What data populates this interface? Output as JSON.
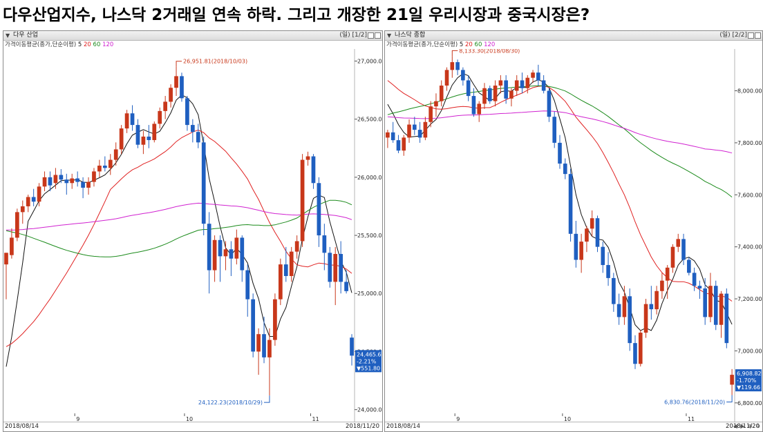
{
  "headline": "다우산업지수, 나스닥 2거래일 연속 하락. 그리고 개장한 21일 우리시장과 중국시장은?",
  "chart_data": [
    {
      "type": "candlestick",
      "panel_title": "다우 산업",
      "panel_period": "(일) [1/2]",
      "indicator_label": "가격이동평균(종가,단순이평)",
      "ma_periods": [
        {
          "label": "5",
          "color": "#111111"
        },
        {
          "label": "20",
          "color": "#e02020"
        },
        {
          "label": "60",
          "color": "#1a8a1a"
        },
        {
          "label": "120",
          "color": "#d020d0"
        }
      ],
      "colors": {
        "up": "#c8371a",
        "down": "#1f5fc0",
        "ma5": "#111111",
        "ma20": "#e02020",
        "ma60": "#1a8a1a",
        "ma120": "#d020d0"
      },
      "x_date_start": "2018/08/14",
      "x_date_end": "2018/11/20",
      "x_month_ticks": [
        {
          "label": "9",
          "index": 13
        },
        {
          "label": "10",
          "index": 33
        },
        {
          "label": "11",
          "index": 56
        }
      ],
      "y_ticks": [
        24000,
        24500,
        25000,
        25500,
        26000,
        26500,
        27000
      ],
      "y_tick_labels": [
        "24,000.00",
        "24,500.00",
        "25,000.00",
        "25,500.00",
        "26,000.00",
        "26,500.00",
        "27,000.00"
      ],
      "ylim": [
        23980,
        27080
      ],
      "high_annotation": "26,951.81(2018/10/03)",
      "low_annotation": "24,122.23(2018/10/29)",
      "last_value_box": [
        "24,465.64",
        "-2.21%",
        "▼551.80"
      ],
      "ohlc": [
        [
          25250,
          25350,
          24950,
          25350
        ],
        [
          25330,
          25560,
          25300,
          25480
        ],
        [
          25480,
          25730,
          25450,
          25700
        ],
        [
          25700,
          25800,
          25600,
          25750
        ],
        [
          25750,
          25850,
          25700,
          25830
        ],
        [
          25830,
          25900,
          25750,
          25790
        ],
        [
          25790,
          25950,
          25750,
          25920
        ],
        [
          25920,
          26050,
          25880,
          26000
        ],
        [
          26000,
          26050,
          25880,
          25930
        ],
        [
          25950,
          26080,
          25900,
          26020
        ],
        [
          26020,
          26070,
          25950,
          25980
        ],
        [
          25980,
          26030,
          25850,
          25950
        ],
        [
          25950,
          26030,
          25900,
          25990
        ],
        [
          25990,
          26050,
          25920,
          25960
        ],
        [
          25960,
          26000,
          25820,
          25910
        ],
        [
          25910,
          26000,
          25850,
          25960
        ],
        [
          25960,
          26080,
          25920,
          26050
        ],
        [
          26050,
          26150,
          26000,
          26100
        ],
        [
          26100,
          26180,
          26050,
          26080
        ],
        [
          26080,
          26200,
          26020,
          26150
        ],
        [
          26150,
          26300,
          26100,
          26240
        ],
        [
          26240,
          26450,
          26200,
          26420
        ],
        [
          26420,
          26580,
          26380,
          26550
        ],
        [
          26550,
          26620,
          26400,
          26450
        ],
        [
          26450,
          26500,
          26250,
          26280
        ],
        [
          26280,
          26400,
          26200,
          26350
        ],
        [
          26350,
          26450,
          26250,
          26320
        ],
        [
          26320,
          26480,
          26300,
          26460
        ],
        [
          26460,
          26600,
          26420,
          26570
        ],
        [
          26570,
          26700,
          26500,
          26650
        ],
        [
          26650,
          26800,
          26600,
          26770
        ],
        [
          26770,
          26951,
          26700,
          26870
        ],
        [
          26870,
          26900,
          26650,
          26680
        ],
        [
          26680,
          26700,
          26400,
          26450
        ],
        [
          26450,
          26500,
          26300,
          26390
        ],
        [
          26390,
          26460,
          26250,
          26300
        ],
        [
          26300,
          26350,
          25500,
          25600
        ],
        [
          25600,
          25700,
          25000,
          25200
        ],
        [
          25200,
          25500,
          25100,
          25460
        ],
        [
          25460,
          25500,
          25100,
          25320
        ],
        [
          25320,
          25450,
          25200,
          25380
        ],
        [
          25380,
          25450,
          25150,
          25300
        ],
        [
          25300,
          25550,
          25250,
          25480
        ],
        [
          25480,
          25500,
          25100,
          25200
        ],
        [
          25200,
          25250,
          24800,
          24950
        ],
        [
          24950,
          25000,
          24450,
          24500
        ],
        [
          24500,
          24700,
          24300,
          24650
        ],
        [
          24650,
          24800,
          24400,
          24450
        ],
        [
          24450,
          24700,
          24122,
          24600
        ],
        [
          24600,
          25000,
          24550,
          24950
        ],
        [
          24950,
          25300,
          24900,
          25250
        ],
        [
          25250,
          25400,
          25100,
          25150
        ],
        [
          25150,
          25400,
          25100,
          25360
        ],
        [
          25360,
          25500,
          25300,
          25450
        ],
        [
          25450,
          26200,
          25400,
          26150
        ],
        [
          26150,
          26220,
          26100,
          26180
        ],
        [
          26180,
          26200,
          25900,
          25950
        ],
        [
          25950,
          26000,
          25400,
          25500
        ],
        [
          25500,
          25600,
          25200,
          25350
        ],
        [
          25350,
          25400,
          25050,
          25100
        ],
        [
          25100,
          25400,
          24900,
          25340
        ],
        [
          25340,
          25450,
          25000,
          25100
        ],
        [
          25100,
          25200,
          25000,
          25020
        ],
        [
          24620,
          24650,
          24380,
          24465
        ]
      ]
    },
    {
      "type": "candlestick",
      "panel_title": "나스닥 종합",
      "panel_period": "(일) [2/2]",
      "indicator_label": "가격이동평균(종가,단순이평)",
      "ma_periods": [
        {
          "label": "5",
          "color": "#111111"
        },
        {
          "label": "20",
          "color": "#e02020"
        },
        {
          "label": "60",
          "color": "#1a8a1a"
        },
        {
          "label": "120",
          "color": "#d020d0"
        }
      ],
      "colors": {
        "up": "#c8371a",
        "down": "#1f5fc0",
        "ma5": "#111111",
        "ma20": "#e02020",
        "ma60": "#1a8a1a",
        "ma120": "#d020d0"
      },
      "x_date_start": "2018/08/14",
      "x_date_end": "2018/11/20",
      "x_month_ticks": [
        {
          "label": "9",
          "index": 13
        },
        {
          "label": "10",
          "index": 33
        },
        {
          "label": "11",
          "index": 56
        }
      ],
      "y_ticks": [
        6800,
        7000,
        7200,
        7400,
        7600,
        7800,
        8000
      ],
      "y_tick_labels": [
        "6,800.00",
        "7,000.00",
        "7,200.00",
        "7,400.00",
        "7,600.00",
        "7,800.00",
        "8,000.00"
      ],
      "ylim": [
        6765,
        8150
      ],
      "high_annotation": "8,133.30(2018/08/30)",
      "low_annotation": "6,830.76(2018/11/20)",
      "last_value_box": [
        "6,908.82",
        "-1.70%",
        "▼119.66"
      ],
      "ohlc": [
        [
          7820,
          7850,
          7780,
          7840
        ],
        [
          7840,
          7880,
          7800,
          7810
        ],
        [
          7810,
          7830,
          7760,
          7770
        ],
        [
          7770,
          7830,
          7750,
          7820
        ],
        [
          7820,
          7890,
          7800,
          7870
        ],
        [
          7870,
          7900,
          7830,
          7850
        ],
        [
          7850,
          7880,
          7800,
          7820
        ],
        [
          7820,
          7900,
          7810,
          7880
        ],
        [
          7880,
          7960,
          7860,
          7940
        ],
        [
          7940,
          7990,
          7900,
          7960
        ],
        [
          7960,
          8040,
          7940,
          8020
        ],
        [
          8020,
          8090,
          8000,
          8080
        ],
        [
          8080,
          8133,
          8050,
          8110
        ],
        [
          8110,
          8120,
          8060,
          8080
        ],
        [
          8080,
          8090,
          8020,
          8040
        ],
        [
          8040,
          8060,
          7960,
          7980
        ],
        [
          7980,
          8010,
          7900,
          7910
        ],
        [
          7910,
          7960,
          7880,
          7950
        ],
        [
          7950,
          8030,
          7930,
          8010
        ],
        [
          8010,
          8020,
          7950,
          7960
        ],
        [
          7960,
          8040,
          7940,
          8020
        ],
        [
          8020,
          8060,
          7990,
          8040
        ],
        [
          8040,
          8060,
          7950,
          7970
        ],
        [
          7970,
          8010,
          7940,
          8000
        ],
        [
          8000,
          8060,
          7980,
          8040
        ],
        [
          8040,
          8070,
          7990,
          8010
        ],
        [
          8010,
          8060,
          7990,
          8050
        ],
        [
          8050,
          8080,
          8030,
          8070
        ],
        [
          8070,
          8100,
          8020,
          8040
        ],
        [
          8040,
          8060,
          7990,
          8000
        ],
        [
          8000,
          8010,
          7880,
          7900
        ],
        [
          7900,
          7920,
          7780,
          7800
        ],
        [
          7800,
          7830,
          7700,
          7720
        ],
        [
          7720,
          7740,
          7660,
          7680
        ],
        [
          7680,
          7700,
          7420,
          7450
        ],
        [
          7450,
          7500,
          7320,
          7350
        ],
        [
          7350,
          7450,
          7300,
          7420
        ],
        [
          7420,
          7480,
          7380,
          7470
        ],
        [
          7470,
          7540,
          7440,
          7510
        ],
        [
          7510,
          7520,
          7380,
          7400
        ],
        [
          7400,
          7420,
          7300,
          7330
        ],
        [
          7330,
          7380,
          7250,
          7280
        ],
        [
          7280,
          7300,
          7150,
          7180
        ],
        [
          7180,
          7220,
          7100,
          7130
        ],
        [
          7130,
          7250,
          7100,
          7210
        ],
        [
          7210,
          7240,
          7000,
          7030
        ],
        [
          7030,
          7060,
          6930,
          6950
        ],
        [
          6950,
          7080,
          6940,
          7070
        ],
        [
          7070,
          7200,
          7050,
          7180
        ],
        [
          7180,
          7250,
          7120,
          7160
        ],
        [
          7160,
          7250,
          7140,
          7230
        ],
        [
          7230,
          7300,
          7200,
          7270
        ],
        [
          7270,
          7330,
          7200,
          7320
        ],
        [
          7320,
          7410,
          7300,
          7400
        ],
        [
          7400,
          7450,
          7380,
          7430
        ],
        [
          7430,
          7450,
          7330,
          7350
        ],
        [
          7350,
          7360,
          7290,
          7300
        ],
        [
          7300,
          7320,
          7230,
          7250
        ],
        [
          7250,
          7270,
          7200,
          7240
        ],
        [
          7240,
          7280,
          7100,
          7130
        ],
        [
          7130,
          7300,
          7110,
          7250
        ],
        [
          7250,
          7270,
          7080,
          7100
        ],
        [
          7100,
          7230,
          7050,
          7220
        ],
        [
          7220,
          7240,
          7010,
          7030
        ],
        [
          6870,
          6930,
          6830,
          6908
        ]
      ]
    }
  ]
}
